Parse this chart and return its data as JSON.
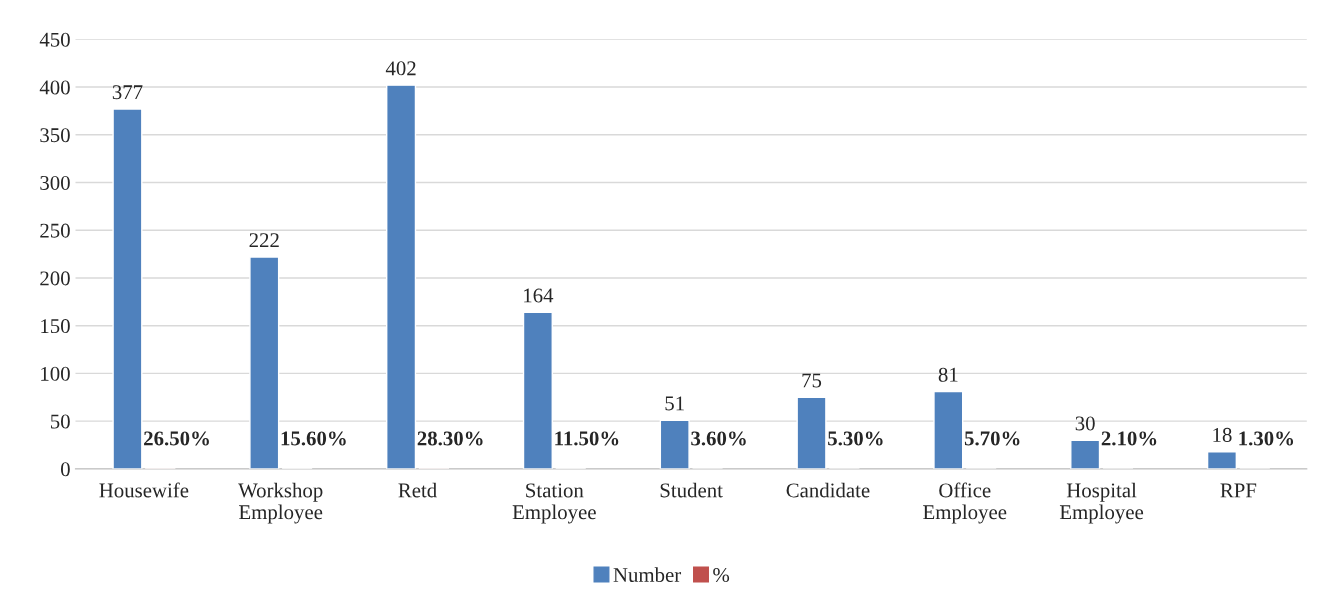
{
  "chart_data": {
    "type": "bar",
    "categories": [
      "Housewife",
      "Workshop Employee",
      "Retd",
      "Station Employee",
      "Student",
      "Candidate",
      "Office Employee",
      "Hospital Employee",
      "RPF"
    ],
    "series": [
      {
        "name": "Number",
        "color": "#4f81bd",
        "values": [
          377,
          222,
          402,
          164,
          51,
          75,
          81,
          30,
          18
        ],
        "value_labels": [
          "377",
          "222",
          "402",
          "164",
          "51",
          "75",
          "81",
          "30",
          "18"
        ]
      },
      {
        "name": "%",
        "color": "#c0504d",
        "values": [
          0.265,
          0.156,
          0.283,
          0.115,
          0.036,
          0.053,
          0.057,
          0.021,
          0.013
        ],
        "value_labels": [
          "26.50%",
          "15.60%",
          "28.30%",
          "11.50%",
          "3.60%",
          "5.30%",
          "5.70%",
          "2.10%",
          "1.30%"
        ]
      }
    ],
    "ylim": [
      0,
      450
    ],
    "yticks": [
      0,
      50,
      100,
      150,
      200,
      250,
      300,
      350,
      400,
      450
    ],
    "grid": "y",
    "legend": "bottom"
  }
}
